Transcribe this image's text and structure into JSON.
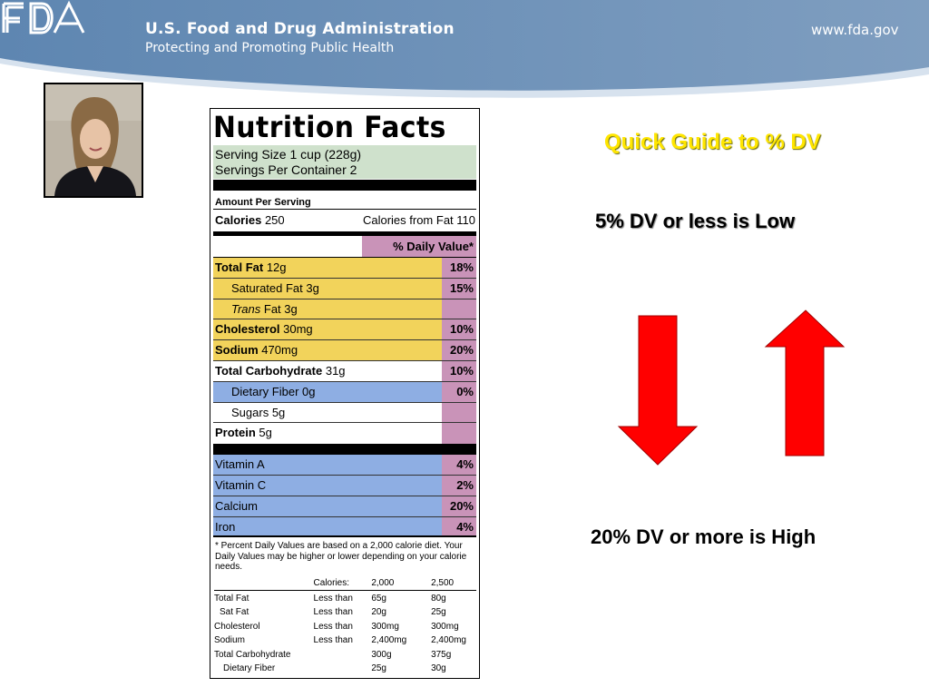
{
  "header": {
    "logo_text": "FDA",
    "agency_name": "U.S. Food and Drug Administration",
    "tagline": "Protecting and Promoting Public Health",
    "website": "www.fda.gov",
    "banner_color": "#6f91b7"
  },
  "presenter": {
    "icon": "presenter-photo"
  },
  "label": {
    "title": "Nutrition Facts",
    "serving_size": "Serving Size 1 cup (228g)",
    "servings_per_container": "Servings Per Container  2",
    "amount_per_serving": "Amount Per Serving",
    "calories_label": "Calories",
    "calories_value": "250",
    "calories_from_fat": "Calories from Fat 110",
    "daily_value_header": "% Daily Value*",
    "nutrients": [
      {
        "name": "Total Fat",
        "amount": "12g",
        "dv": "18%"
      },
      {
        "name": "Saturated Fat",
        "amount": "3g",
        "dv": "15%"
      },
      {
        "name": "Trans",
        "amount": "Fat 3g",
        "dv": ""
      },
      {
        "name": "Cholesterol",
        "amount": "30mg",
        "dv": "10%"
      },
      {
        "name": "Sodium",
        "amount": "470mg",
        "dv": "20%"
      },
      {
        "name": "Total Carbohydrate",
        "amount": "31g",
        "dv": "10%"
      },
      {
        "name": "Dietary Fiber",
        "amount": "0g",
        "dv": "0%"
      },
      {
        "name": "Sugars",
        "amount": "5g",
        "dv": ""
      },
      {
        "name": "Protein",
        "amount": "5g",
        "dv": ""
      }
    ],
    "vitamins": [
      {
        "name": "Vitamin A",
        "dv": "4%"
      },
      {
        "name": "Vitamin C",
        "dv": "2%"
      },
      {
        "name": "Calcium",
        "dv": "20%"
      },
      {
        "name": "Iron",
        "dv": "4%"
      }
    ],
    "footnote": "* Percent Daily Values are based on a 2,000 calorie diet. Your Daily Values may be higher or lower depending on your calorie needs.",
    "footnote_table": {
      "header": [
        "",
        "Calories:",
        "2,000",
        "2,500"
      ],
      "rows": [
        [
          "Total Fat",
          "Less than",
          "65g",
          "80g"
        ],
        [
          "Sat Fat",
          "Less than",
          "20g",
          "25g"
        ],
        [
          "Cholesterol",
          "Less than",
          "300mg",
          "300mg"
        ],
        [
          "Sodium",
          "Less than",
          "2,400mg",
          "2,400mg"
        ],
        [
          "Total Carbohydrate",
          "",
          "300g",
          "375g"
        ],
        [
          "Dietary Fiber",
          "",
          "25g",
          "30g"
        ]
      ]
    },
    "colors": {
      "serving": "#cfe1cc",
      "fat": "#f2d35b",
      "fiber": "#8eaee3",
      "dv": "#c993b8"
    }
  },
  "guide": {
    "title": "Quick Guide to % DV",
    "low": "5% DV or less is Low",
    "high": "20% DV or more is High",
    "arrow_color": "#ff0000",
    "arrows": [
      "arrow-down-icon",
      "arrow-up-icon"
    ]
  }
}
